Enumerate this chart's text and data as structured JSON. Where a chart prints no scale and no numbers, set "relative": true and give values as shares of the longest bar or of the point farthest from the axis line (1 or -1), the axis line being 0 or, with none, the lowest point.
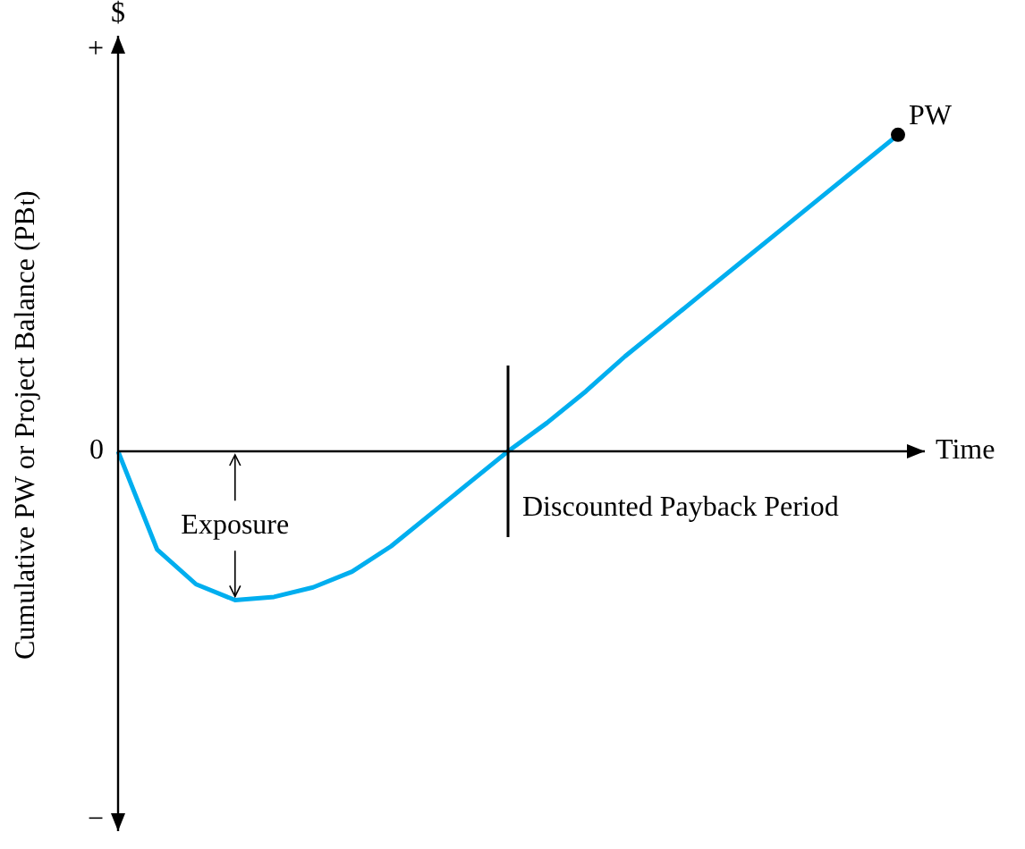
{
  "chart_data": {
    "type": "line",
    "relative": true,
    "ylabel": "Cumulative PW or Project Balance (PB$_{t}$)",
    "xlabel": "Time",
    "categories": [
      null,
      null,
      null,
      null,
      null,
      null,
      null,
      null,
      null,
      null,
      null,
      null,
      null,
      null,
      null,
      null,
      null,
      null,
      null,
      null,
      null
    ],
    "series": [
      {
        "name": "PW",
        "color": "#00aeef",
        "values": [
          0,
          -0.31,
          -0.42,
          -0.47,
          -0.46,
          -0.43,
          -0.38,
          -0.3,
          -0.2,
          -0.1,
          0,
          0.09,
          0.19,
          0.3,
          0.4,
          0.5,
          0.6,
          0.7,
          0.8,
          0.9,
          1
        ]
      }
    ],
    "annotations": [
      "$",
      "+",
      "0",
      "−",
      "Exposure",
      "Discounted Payback Period"
    ]
  }
}
